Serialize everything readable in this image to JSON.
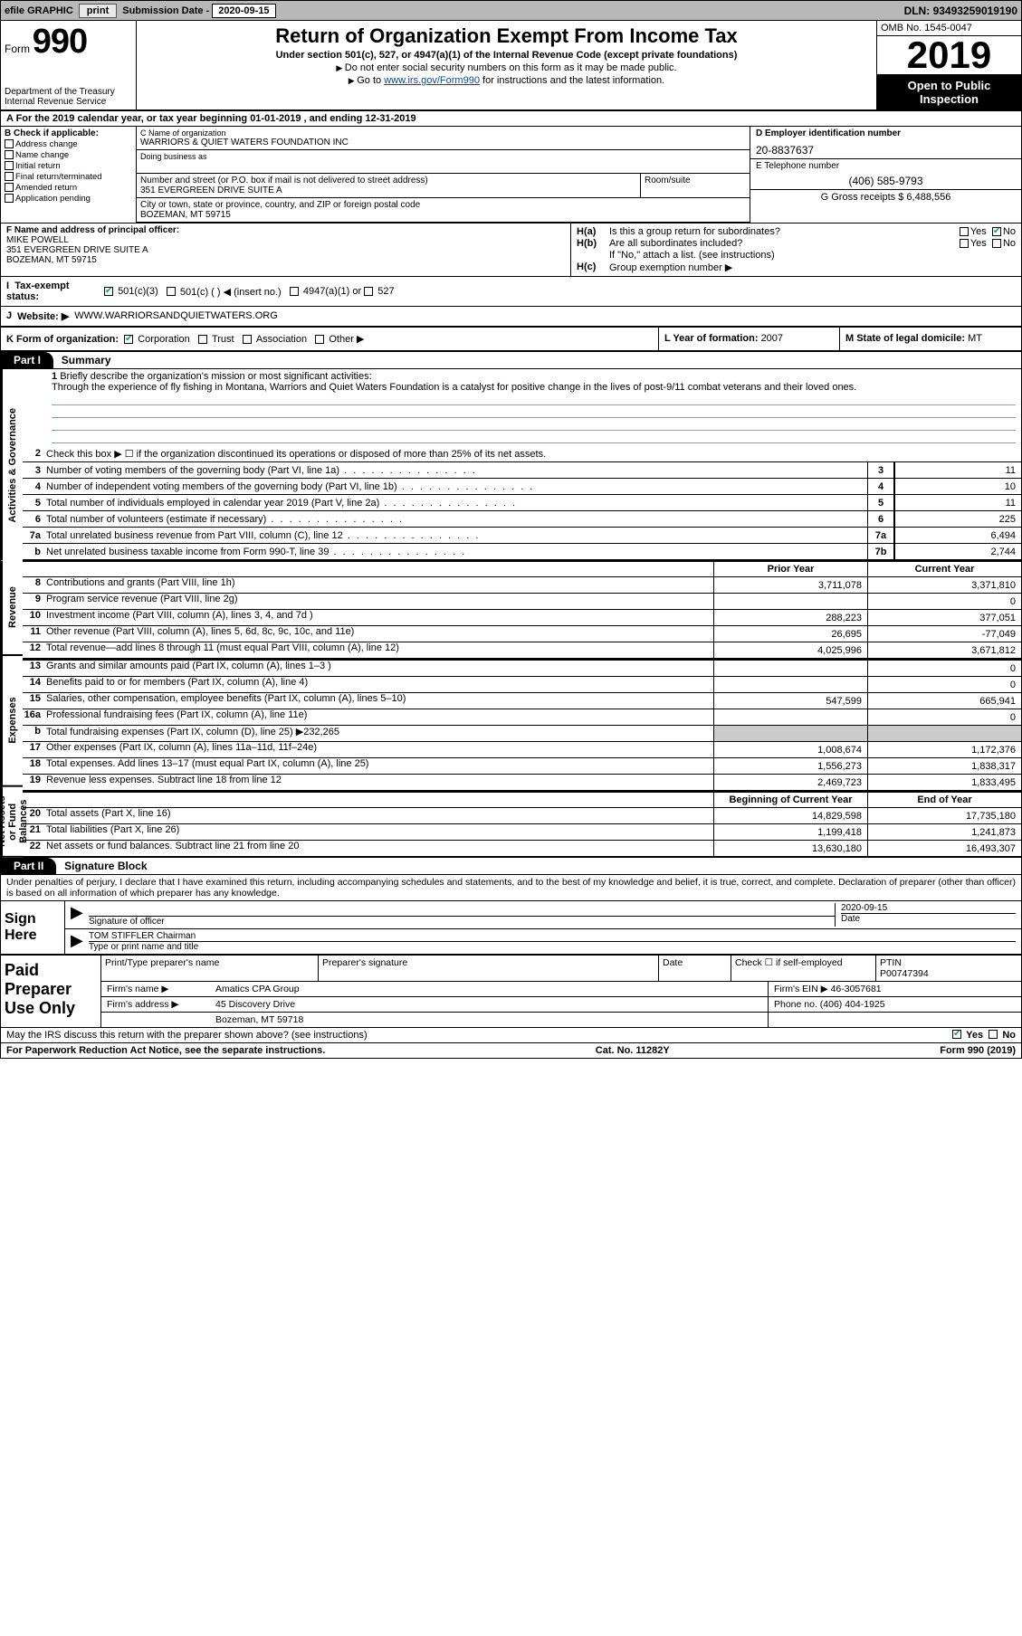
{
  "topbar": {
    "efile_label": "efile GRAPHIC",
    "print_btn": "print",
    "sub_date_label": "Submission Date - ",
    "sub_date": "2020-09-15",
    "dln_label": "DLN: ",
    "dln": "93493259019190"
  },
  "header": {
    "form_word": "Form",
    "form_num": "990",
    "dept1": "Department of the Treasury",
    "dept2": "Internal Revenue Service",
    "title": "Return of Organization Exempt From Income Tax",
    "sub1": "Under section 501(c), 527, or 4947(a)(1) of the Internal Revenue Code (except private foundations)",
    "sub2": "Do not enter social security numbers on this form as it may be made public.",
    "sub3_pre": "Go to ",
    "sub3_link": "www.irs.gov/Form990",
    "sub3_post": " for instructions and the latest information.",
    "omb": "OMB No. 1545-0047",
    "year": "2019",
    "open1": "Open to Public",
    "open2": "Inspection"
  },
  "period": {
    "text": "A For the 2019 calendar year, or tax year beginning 01-01-2019    , and ending 12-31-2019"
  },
  "box_b": {
    "header": "B Check if applicable:",
    "items": [
      "Address change",
      "Name change",
      "Initial return",
      "Final return/terminated",
      "Amended return",
      "Application pending"
    ]
  },
  "box_c": {
    "name_label": "C Name of organization",
    "name": "WARRIORS & QUIET WATERS FOUNDATION INC",
    "dba_label": "Doing business as",
    "addr_label": "Number and street (or P.O. box if mail is not delivered to street address)",
    "addr": "351 EVERGREEN DRIVE SUITE A",
    "room_label": "Room/suite",
    "city_label": "City or town, state or province, country, and ZIP or foreign postal code",
    "city": "BOZEMAN, MT  59715"
  },
  "box_d": {
    "label": "D Employer identification number",
    "ein": "20-8837637"
  },
  "box_e": {
    "label": "E Telephone number",
    "phone": "(406) 585-9793"
  },
  "box_g": {
    "label": "G Gross receipts $ ",
    "val": "6,488,556"
  },
  "box_f": {
    "label": "F  Name and address of principal officer:",
    "name": "MIKE POWELL",
    "addr1": "351 EVERGREEN DRIVE SUITE A",
    "addr2": "BOZEMAN, MT  59715"
  },
  "box_h": {
    "a_label": "H(a)",
    "a_text": "Is this a group return for subordinates?",
    "a_yes": "Yes",
    "a_no": "No",
    "b_label": "H(b)",
    "b_text": "Are all subordinates included?",
    "b_note": "If \"No,\" attach a list. (see instructions)",
    "c_label": "H(c)",
    "c_text": "Group exemption number ▶"
  },
  "tax_status": {
    "i_label": "I",
    "label": "Tax-exempt status:",
    "opt1": "501(c)(3)",
    "opt2": "501(c) (   ) ◀ (insert no.)",
    "opt3": "4947(a)(1) or",
    "opt4": "527"
  },
  "website": {
    "j_label": "J",
    "label": "Website: ▶",
    "url": "WWW.WARRIORSANDQUIETWATERS.ORG"
  },
  "k_row": {
    "k_label": "K Form of organization:",
    "opts": [
      "Corporation",
      "Trust",
      "Association",
      "Other ▶"
    ],
    "l_label": "L Year of formation: ",
    "l_val": "2007",
    "m_label": "M State of legal domicile: ",
    "m_val": "MT"
  },
  "part1": {
    "badge": "Part I",
    "title": "Summary"
  },
  "sides": {
    "ag": "Activities & Governance",
    "rev": "Revenue",
    "exp": "Expenses",
    "net": "Net Assets or Fund Balances"
  },
  "line1": {
    "num": "1",
    "label": "Briefly describe the organization's mission or most significant activities:",
    "text": "Through the experience of fly fishing in Montana, Warriors and Quiet Waters Foundation is a catalyst for positive change in the lives of post-9/11 combat veterans and their loved ones."
  },
  "line2": {
    "num": "2",
    "text": "Check this box ▶ ☐  if the organization discontinued its operations or disposed of more than 25% of its net assets."
  },
  "ag_lines": [
    {
      "num": "3",
      "desc": "Number of voting members of the governing body (Part VI, line 1a)",
      "box": "3",
      "val": "11"
    },
    {
      "num": "4",
      "desc": "Number of independent voting members of the governing body (Part VI, line 1b)",
      "box": "4",
      "val": "10"
    },
    {
      "num": "5",
      "desc": "Total number of individuals employed in calendar year 2019 (Part V, line 2a)",
      "box": "5",
      "val": "11"
    },
    {
      "num": "6",
      "desc": "Total number of volunteers (estimate if necessary)",
      "box": "6",
      "val": "225"
    },
    {
      "num": "7a",
      "desc": "Total unrelated business revenue from Part VIII, column (C), line 12",
      "box": "7a",
      "val": "6,494"
    },
    {
      "num": "b",
      "desc": "Net unrelated business taxable income from Form 990-T, line 39",
      "box": "7b",
      "val": "2,744"
    }
  ],
  "two_col_hdr": {
    "prior": "Prior Year",
    "curr": "Current Year"
  },
  "rev_lines": [
    {
      "num": "8",
      "desc": "Contributions and grants (Part VIII, line 1h)",
      "prior": "3,711,078",
      "curr": "3,371,810"
    },
    {
      "num": "9",
      "desc": "Program service revenue (Part VIII, line 2g)",
      "prior": "",
      "curr": "0"
    },
    {
      "num": "10",
      "desc": "Investment income (Part VIII, column (A), lines 3, 4, and 7d )",
      "prior": "288,223",
      "curr": "377,051"
    },
    {
      "num": "11",
      "desc": "Other revenue (Part VIII, column (A), lines 5, 6d, 8c, 9c, 10c, and 11e)",
      "prior": "26,695",
      "curr": "-77,049"
    },
    {
      "num": "12",
      "desc": "Total revenue—add lines 8 through 11 (must equal Part VIII, column (A), line 12)",
      "prior": "4,025,996",
      "curr": "3,671,812"
    }
  ],
  "exp_lines": [
    {
      "num": "13",
      "desc": "Grants and similar amounts paid (Part IX, column (A), lines 1–3 )",
      "prior": "",
      "curr": "0"
    },
    {
      "num": "14",
      "desc": "Benefits paid to or for members (Part IX, column (A), line 4)",
      "prior": "",
      "curr": "0"
    },
    {
      "num": "15",
      "desc": "Salaries, other compensation, employee benefits (Part IX, column (A), lines 5–10)",
      "prior": "547,599",
      "curr": "665,941"
    },
    {
      "num": "16a",
      "desc": "Professional fundraising fees (Part IX, column (A), line 11e)",
      "prior": "",
      "curr": "0"
    },
    {
      "num": "b",
      "desc": "Total fundraising expenses (Part IX, column (D), line 25) ▶232,265",
      "prior": "shade",
      "curr": "shade"
    },
    {
      "num": "17",
      "desc": "Other expenses (Part IX, column (A), lines 11a–11d, 11f–24e)",
      "prior": "1,008,674",
      "curr": "1,172,376"
    },
    {
      "num": "18",
      "desc": "Total expenses. Add lines 13–17 (must equal Part IX, column (A), line 25)",
      "prior": "1,556,273",
      "curr": "1,838,317"
    },
    {
      "num": "19",
      "desc": "Revenue less expenses. Subtract line 18 from line 12",
      "prior": "2,469,723",
      "curr": "1,833,495"
    }
  ],
  "net_hdr": {
    "prior": "Beginning of Current Year",
    "curr": "End of Year"
  },
  "net_lines": [
    {
      "num": "20",
      "desc": "Total assets (Part X, line 16)",
      "prior": "14,829,598",
      "curr": "17,735,180"
    },
    {
      "num": "21",
      "desc": "Total liabilities (Part X, line 26)",
      "prior": "1,199,418",
      "curr": "1,241,873"
    },
    {
      "num": "22",
      "desc": "Net assets or fund balances. Subtract line 21 from line 20",
      "prior": "13,630,180",
      "curr": "16,493,307"
    }
  ],
  "part2": {
    "badge": "Part II",
    "title": "Signature Block",
    "decl": "Under penalties of perjury, I declare that I have examined this return, including accompanying schedules and statements, and to the best of my knowledge and belief, it is true, correct, and complete. Declaration of preparer (other than officer) is based on all information of which preparer has any knowledge."
  },
  "sign": {
    "here": "Sign Here",
    "sig_label": "Signature of officer",
    "date_label": "Date",
    "date": "2020-09-15",
    "name": "TOM STIFFLER  Chairman",
    "name_label": "Type or print name and title"
  },
  "paid": {
    "label": "Paid Preparer Use Only",
    "h1": "Print/Type preparer's name",
    "h2": "Preparer's signature",
    "h3": "Date",
    "h4_pre": "Check ☐ if self-employed",
    "h5_label": "PTIN",
    "h5": "P00747394",
    "firm_name_label": "Firm's name     ▶",
    "firm_name": "Amatics CPA Group",
    "firm_ein_label": "Firm's EIN ▶ ",
    "firm_ein": "46-3057681",
    "firm_addr_label": "Firm's address ▶",
    "firm_addr1": "45 Discovery Drive",
    "firm_addr2": "Bozeman, MT  59718",
    "phone_label": "Phone no. ",
    "phone": "(406) 404-1925"
  },
  "discuss": {
    "text": "May the IRS discuss this return with the preparer shown above? (see instructions)",
    "yes": "Yes",
    "no": "No"
  },
  "footer": {
    "left": "For Paperwork Reduction Act Notice, see the separate instructions.",
    "mid": "Cat. No. 11282Y",
    "right": "Form 990 (2019)"
  },
  "colors": {
    "topbar_bg": "#b8b8b8",
    "check_green": "#0a6",
    "link": "#004c9b",
    "rule": "#7aa",
    "shade": "#cccccc"
  }
}
